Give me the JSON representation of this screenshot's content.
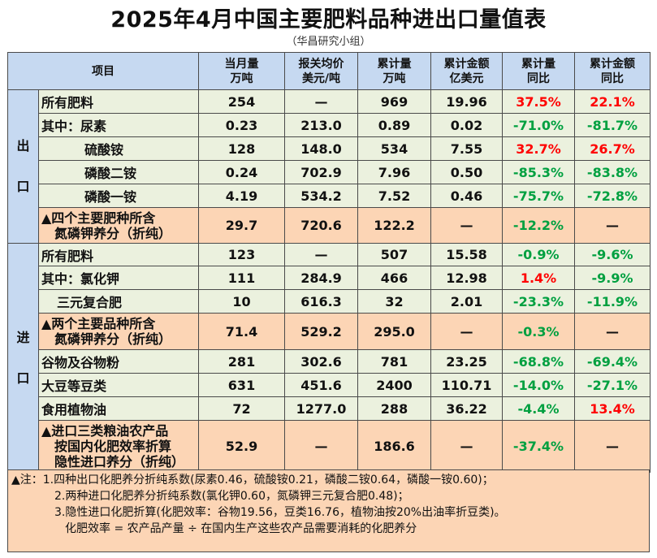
{
  "title": "2025年4月中国主要肥料品种进出口量值表",
  "subtitle": "（华昌研究小组）",
  "headers": {
    "item": "项目",
    "monthly": [
      "当月量",
      "万吨"
    ],
    "price": [
      "报关均价",
      "美元/吨"
    ],
    "cumulative": [
      "累计量",
      "万吨"
    ],
    "amount": [
      "累计金额",
      "亿美元"
    ],
    "cum_yoy": [
      "累计量",
      "同比"
    ],
    "amt_yoy": [
      "累计金额",
      "同比"
    ]
  },
  "sections": {
    "export_label": [
      "出",
      "口"
    ],
    "import_label": [
      "进",
      "口"
    ]
  },
  "export_rows": [
    {
      "name": "所有肥料",
      "monthly": "254",
      "price": "—",
      "cumulative": "969",
      "amount": "19.96",
      "cum_yoy": "37.5%",
      "amt_yoy": "22.1%"
    },
    {
      "name": "其中：尿素",
      "monthly": "0.23",
      "price": "213.0",
      "cumulative": "0.89",
      "amount": "0.02",
      "cum_yoy": "-71.0%",
      "amt_yoy": "-81.7%"
    },
    {
      "name": "硫酸铵",
      "monthly": "128",
      "price": "148.0",
      "cumulative": "534",
      "amount": "7.55",
      "cum_yoy": "32.7%",
      "amt_yoy": "26.7%"
    },
    {
      "name": "磷酸二铵",
      "monthly": "0.24",
      "price": "702.9",
      "cumulative": "7.96",
      "amount": "0.50",
      "cum_yoy": "-85.3%",
      "amt_yoy": "-83.8%"
    },
    {
      "name": "磷酸一铵",
      "monthly": "4.19",
      "price": "534.2",
      "cumulative": "7.52",
      "amount": "0.46",
      "cum_yoy": "-75.7%",
      "amt_yoy": "-72.8%"
    },
    {
      "name": "▲四个主要肥种所含\n氮磷钾养分（折纯）",
      "monthly": "29.7",
      "price": "720.6",
      "cumulative": "122.2",
      "amount": "—",
      "cum_yoy": "-12.2%",
      "amt_yoy": "—"
    }
  ],
  "import_rows": [
    {
      "name": "所有肥料",
      "monthly": "123",
      "price": "—",
      "cumulative": "507",
      "amount": "15.58",
      "cum_yoy": "-0.9%",
      "amt_yoy": "-9.6%"
    },
    {
      "name": "其中：氯化钾",
      "monthly": "111",
      "price": "284.9",
      "cumulative": "466",
      "amount": "12.98",
      "cum_yoy": "1.4%",
      "amt_yoy": "-9.9%"
    },
    {
      "name": "三元复合肥",
      "monthly": "10",
      "price": "616.3",
      "cumulative": "32",
      "amount": "2.01",
      "cum_yoy": "-23.3%",
      "amt_yoy": "-11.9%"
    },
    {
      "name": "▲两个主要品种所含\n氮磷钾养分（折纯）",
      "monthly": "71.4",
      "price": "529.2",
      "cumulative": "295.0",
      "amount": "—",
      "cum_yoy": "-0.3%",
      "amt_yoy": "—"
    },
    {
      "name": "谷物及谷物粉",
      "monthly": "281",
      "price": "302.6",
      "cumulative": "781",
      "amount": "23.25",
      "cum_yoy": "-68.8%",
      "amt_yoy": "-69.4%"
    },
    {
      "name": "大豆等豆类",
      "monthly": "631",
      "price": "451.6",
      "cumulative": "2400",
      "amount": "110.71",
      "cum_yoy": "-14.0%",
      "amt_yoy": "-27.1%"
    },
    {
      "name": "食用植物油",
      "monthly": "72",
      "price": "1277.0",
      "cumulative": "288",
      "amount": "36.22",
      "cum_yoy": "-4.4%",
      "amt_yoy": "13.4%"
    },
    {
      "name": "▲进口三类粮油农产品\n按国内化肥效率折算\n隐性进口养分（折纯）",
      "monthly": "52.9",
      "price": "—",
      "cumulative": "186.6",
      "amount": "—",
      "cum_yoy": "-37.4%",
      "amt_yoy": "—"
    }
  ],
  "notes": [
    "▲注：1.四种出口化肥养分折纯系数(尿素0.46，硫酸铵0.21，磷酸二铵0.64，磷酸一铵0.60)；",
    "2.两种进口化肥养分折纯系数(氯化钾0.60，氮磷钾三元复合肥0.48)；",
    "3.隐性进口化肥折算(化肥效率：谷物19.56，豆类16.76，植物油按20%出油率折豆类)。",
    "化肥效率 = 农产品产量 ÷ 在国内生产这些农产品需要消耗的化肥养分"
  ],
  "colors": {
    "header_bg": "#c6d9f1",
    "row_green": "#ebf1de",
    "row_peach": "#fcd5b5",
    "positive": "#ff0000",
    "negative": "#00a040"
  },
  "chart_data": {
    "type": "table",
    "title": "2025年4月中国主要肥料品种进出口量值表",
    "columns": [
      "项目",
      "当月量 万吨",
      "报关均价 美元/吨",
      "累计量 万吨",
      "累计金额 亿美元",
      "累计量 同比",
      "累计金额 同比"
    ],
    "export": [
      [
        "所有肥料",
        254,
        null,
        969,
        19.96,
        37.5,
        22.1
      ],
      [
        "尿素",
        0.23,
        213.0,
        0.89,
        0.02,
        -71.0,
        -81.7
      ],
      [
        "硫酸铵",
        128,
        148.0,
        534,
        7.55,
        32.7,
        26.7
      ],
      [
        "磷酸二铵",
        0.24,
        702.9,
        7.96,
        0.5,
        -85.3,
        -83.8
      ],
      [
        "磷酸一铵",
        4.19,
        534.2,
        7.52,
        0.46,
        -75.7,
        -72.8
      ],
      [
        "四个主要肥种所含氮磷钾养分（折纯）",
        29.7,
        720.6,
        122.2,
        null,
        -12.2,
        null
      ]
    ],
    "import": [
      [
        "所有肥料",
        123,
        null,
        507,
        15.58,
        -0.9,
        -9.6
      ],
      [
        "氯化钾",
        111,
        284.9,
        466,
        12.98,
        1.4,
        -9.9
      ],
      [
        "三元复合肥",
        10,
        616.3,
        32,
        2.01,
        -23.3,
        -11.9
      ],
      [
        "两个主要品种所含氮磷钾养分（折纯）",
        71.4,
        529.2,
        295.0,
        null,
        -0.3,
        null
      ],
      [
        "谷物及谷物粉",
        281,
        302.6,
        781,
        23.25,
        -68.8,
        -69.4
      ],
      [
        "大豆等豆类",
        631,
        451.6,
        2400,
        110.71,
        -14.0,
        -27.1
      ],
      [
        "食用植物油",
        72,
        1277.0,
        288,
        36.22,
        -4.4,
        13.4
      ],
      [
        "进口三类粮油农产品按国内化肥效率折算隐性进口养分（折纯）",
        52.9,
        null,
        186.6,
        null,
        -37.4,
        null
      ]
    ]
  }
}
